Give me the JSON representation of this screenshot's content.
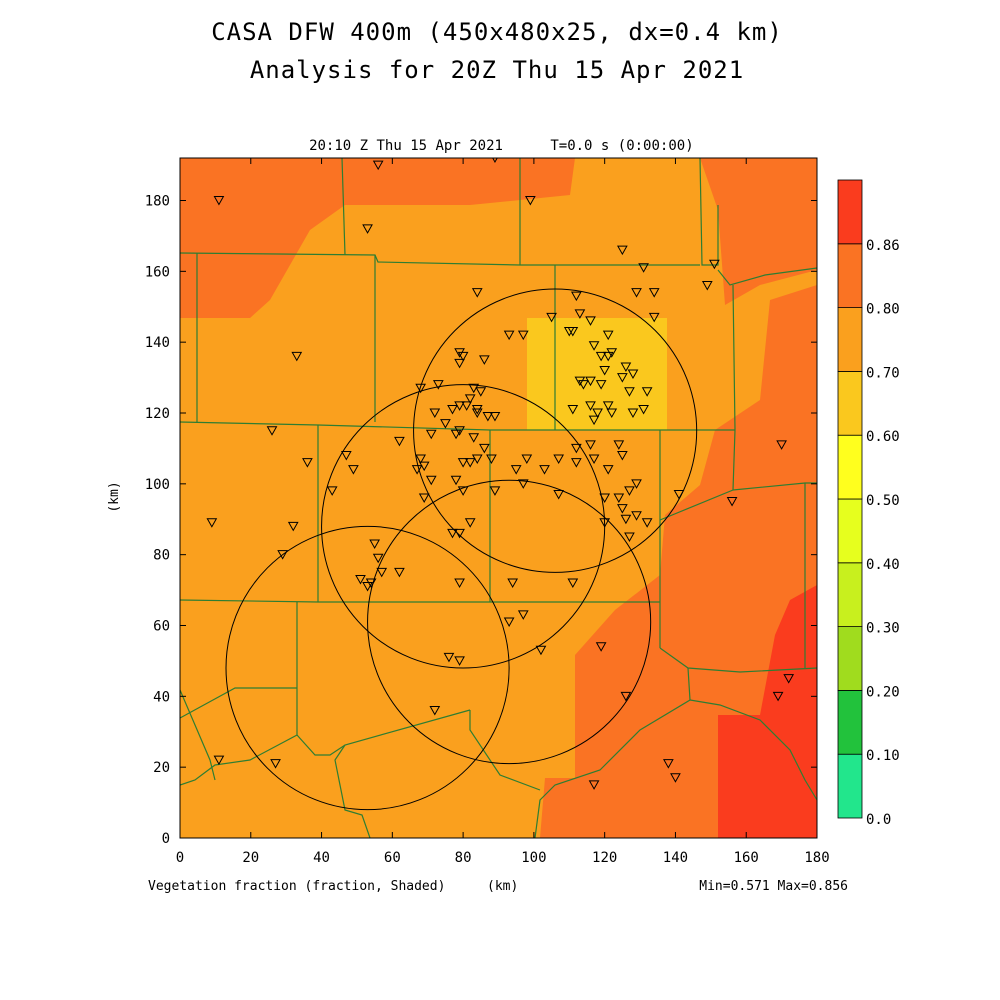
{
  "title_line1": "CASA DFW 400m (450x480x25, dx=0.4 km)",
  "title_line2": "Analysis for 20Z Thu 15 Apr 2021",
  "valid_time": "20:10 Z Thu 15 Apr 2021",
  "forecast_time": "T=0.0 s (0:00:00)",
  "field_label": "Vegetation fraction (fraction, Shaded)",
  "x_unit": "(km)",
  "y_unit": "(km)",
  "min_max": "Min=0.571 Max=0.856",
  "x_ticks": [
    "0",
    "20",
    "40",
    "60",
    "80",
    "100",
    "120",
    "140",
    "160",
    "180"
  ],
  "y_ticks": [
    "0",
    "20",
    "40",
    "60",
    "80",
    "100",
    "120",
    "140",
    "160",
    "180"
  ],
  "colorbar": {
    "labels": [
      "0.0",
      "0.10",
      "0.20",
      "0.30",
      "0.40",
      "0.50",
      "0.60",
      "0.70",
      "0.80",
      "0.86"
    ],
    "colors": [
      "#22e68c",
      "#22c23c",
      "#a0dc1e",
      "#c8f01e",
      "#e6ff1e",
      "#ffff1e",
      "#fac81e",
      "#faa01e",
      "#fa7323",
      "#fa3c1e"
    ]
  },
  "map_colors": {
    "c060_070": "#faa01e",
    "c050_060": "#fac81e",
    "c070_080": "#fa7323",
    "c080_086": "#fa3c1e",
    "county_line": "#2e7d32",
    "radar_ring": "#000000",
    "station": "#000000"
  },
  "radar_rings_km": [
    {
      "cx": 106,
      "cy": 115,
      "r": 40
    },
    {
      "cx": 80,
      "cy": 88,
      "r": 40
    },
    {
      "cx": 93,
      "cy": 61,
      "r": 40
    },
    {
      "cx": 53,
      "cy": 48,
      "r": 40
    }
  ],
  "stations_km": [
    [
      11,
      180
    ],
    [
      56,
      190
    ],
    [
      89,
      192
    ],
    [
      99,
      180
    ],
    [
      53,
      172
    ],
    [
      125,
      166
    ],
    [
      151,
      162
    ],
    [
      149,
      156
    ],
    [
      131,
      161
    ],
    [
      129,
      154
    ],
    [
      134,
      154
    ],
    [
      84,
      154
    ],
    [
      112,
      153
    ],
    [
      110,
      143
    ],
    [
      116,
      146
    ],
    [
      105,
      147
    ],
    [
      113,
      148
    ],
    [
      121,
      142
    ],
    [
      111,
      143
    ],
    [
      134,
      147
    ],
    [
      97,
      142
    ],
    [
      117,
      139
    ],
    [
      122,
      137
    ],
    [
      121,
      136
    ],
    [
      119,
      136
    ],
    [
      126,
      133
    ],
    [
      120,
      132
    ],
    [
      116,
      129
    ],
    [
      113,
      129
    ],
    [
      114,
      128
    ],
    [
      119,
      128
    ],
    [
      127,
      126
    ],
    [
      125,
      130
    ],
    [
      128,
      131
    ],
    [
      132,
      126
    ],
    [
      131,
      121
    ],
    [
      128,
      120
    ],
    [
      121,
      122
    ],
    [
      116,
      122
    ],
    [
      118,
      120
    ],
    [
      122,
      120
    ],
    [
      117,
      118
    ],
    [
      111,
      121
    ],
    [
      33,
      136
    ],
    [
      79,
      137
    ],
    [
      80,
      136
    ],
    [
      79,
      134
    ],
    [
      86,
      135
    ],
    [
      73,
      128
    ],
    [
      83,
      127
    ],
    [
      85,
      126
    ],
    [
      82,
      124
    ],
    [
      84,
      120
    ],
    [
      81,
      122
    ],
    [
      79,
      122
    ],
    [
      77,
      121
    ],
    [
      84,
      121
    ],
    [
      89,
      119
    ],
    [
      87,
      119
    ],
    [
      93,
      142
    ],
    [
      62,
      112
    ],
    [
      71,
      114
    ],
    [
      75,
      117
    ],
    [
      72,
      120
    ],
    [
      68,
      127
    ],
    [
      78,
      114
    ],
    [
      83,
      113
    ],
    [
      79,
      115
    ],
    [
      86,
      110
    ],
    [
      84,
      107
    ],
    [
      88,
      107
    ],
    [
      98,
      107
    ],
    [
      103,
      104
    ],
    [
      107,
      107
    ],
    [
      112,
      110
    ],
    [
      116,
      111
    ],
    [
      124,
      111
    ],
    [
      125,
      108
    ],
    [
      121,
      104
    ],
    [
      117,
      107
    ],
    [
      112,
      106
    ],
    [
      107,
      97
    ],
    [
      95,
      104
    ],
    [
      97,
      100
    ],
    [
      26,
      115
    ],
    [
      36,
      106
    ],
    [
      47,
      108
    ],
    [
      49,
      104
    ],
    [
      43,
      98
    ],
    [
      67,
      104
    ],
    [
      69,
      105
    ],
    [
      71,
      101
    ],
    [
      68,
      107
    ],
    [
      69,
      96
    ],
    [
      78,
      101
    ],
    [
      80,
      106
    ],
    [
      82,
      106
    ],
    [
      80,
      98
    ],
    [
      89,
      98
    ],
    [
      120,
      96
    ],
    [
      124,
      96
    ],
    [
      127,
      98
    ],
    [
      129,
      100
    ],
    [
      125,
      93
    ],
    [
      126,
      90
    ],
    [
      129,
      91
    ],
    [
      132,
      89
    ],
    [
      141,
      97
    ],
    [
      156,
      95
    ],
    [
      170,
      111
    ],
    [
      9,
      89
    ],
    [
      32,
      88
    ],
    [
      29,
      80
    ],
    [
      55,
      83
    ],
    [
      56,
      79
    ],
    [
      57,
      75
    ],
    [
      62,
      75
    ],
    [
      51,
      73
    ],
    [
      53,
      71
    ],
    [
      54,
      72
    ],
    [
      79,
      72
    ],
    [
      77,
      86
    ],
    [
      79,
      86
    ],
    [
      82,
      89
    ],
    [
      94,
      72
    ],
    [
      120,
      89
    ],
    [
      127,
      85
    ],
    [
      111,
      72
    ],
    [
      97,
      63
    ],
    [
      102,
      53
    ],
    [
      93,
      61
    ],
    [
      76,
      51
    ],
    [
      119,
      54
    ],
    [
      126,
      40
    ],
    [
      72,
      36
    ],
    [
      79,
      50
    ],
    [
      11,
      22
    ],
    [
      27,
      21
    ],
    [
      117,
      15
    ],
    [
      138,
      21
    ],
    [
      140,
      17
    ],
    [
      169,
      40
    ],
    [
      172,
      45
    ]
  ]
}
